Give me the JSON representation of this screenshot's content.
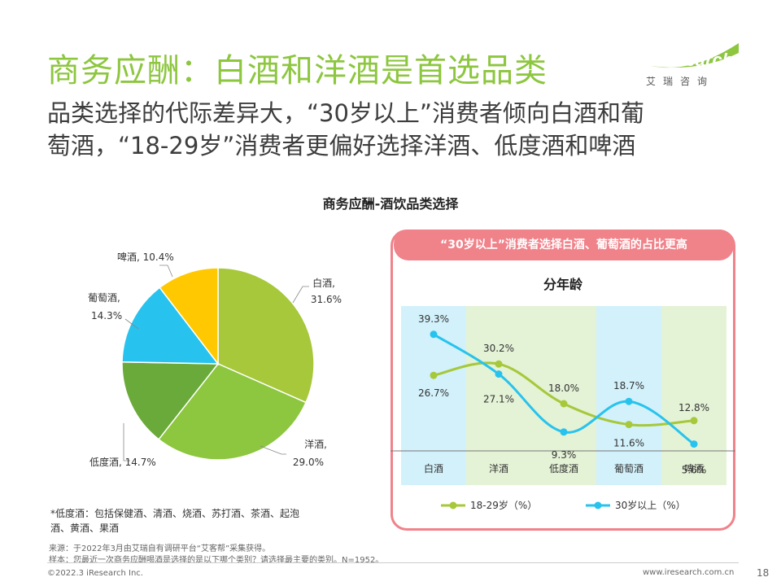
{
  "header": {
    "title": "商务应酬：白酒和洋酒是首选品类",
    "subtitle_line1": "品类选择的代际差异大，“30岁以上”消费者倾向白酒和葡",
    "subtitle_line2": "萄酒，“18-29岁”消费者更偏好选择洋酒、低度酒和啤酒"
  },
  "logo": {
    "brand": "iResearch",
    "cn": "艾瑞咨询"
  },
  "colors": {
    "accent": "#8dc63f",
    "callout": "#f0828a",
    "series1": "#a6c83a",
    "series2": "#27c3ee"
  },
  "chart_data": [
    {
      "type": "pie",
      "title": "商务应酬-酒饮品类选择",
      "slices": [
        {
          "label": "白酒,",
          "pct_label": "31.6%",
          "value": 31.6,
          "color": "#a6c83a"
        },
        {
          "label": "洋酒,",
          "pct_label": "29.0%",
          "value": 29.0,
          "color": "#8dc63f"
        },
        {
          "label": "低度酒, 14.7%",
          "pct_label": "",
          "value": 14.7,
          "color": "#6aaa3a"
        },
        {
          "label": "葡萄酒,",
          "pct_label": "14.3%",
          "value": 14.3,
          "color": "#27c3ee"
        },
        {
          "label": "啤酒, 10.4%",
          "pct_label": "",
          "value": 10.4,
          "color": "#ffc800"
        }
      ]
    },
    {
      "type": "line",
      "title": "分年龄",
      "callout": "“30岁以上”消费者选择白酒、葡萄酒的占比更高",
      "categories": [
        "白酒",
        "洋酒",
        "低度酒",
        "葡萄酒",
        "啤酒"
      ],
      "ylim": [
        0,
        45
      ],
      "series": [
        {
          "name": "18-29岁（%）",
          "values": [
            26.7,
            30.2,
            18.0,
            11.6,
            12.8
          ],
          "labels": [
            "26.7%",
            "30.2%",
            "18.0%",
            "11.6%",
            "12.8%"
          ],
          "color": "#a6c83a"
        },
        {
          "name": "30岁以上（%）",
          "values": [
            39.3,
            27.1,
            9.3,
            18.7,
            5.6
          ],
          "labels": [
            "39.3%",
            "27.1%",
            "9.3%",
            "18.7%",
            "5.6%"
          ],
          "color": "#27c3ee"
        }
      ]
    }
  ],
  "notes": {
    "lowalc": "*低度酒：包括保健酒、清酒、烧酒、苏打酒、茶酒、起泡酒、黄酒、果酒",
    "source": "来源：于2022年3月由艾瑞自有调研平台“艾客帮”采集获得。",
    "sample": "样本：您最近一次商务应酬喝酒是选择的是以下哪个类别？请选择最主要的类别。N=1952。",
    "copyright": "©2022.3 iResearch Inc.",
    "url": "www.iresearch.com.cn",
    "page": "18"
  }
}
